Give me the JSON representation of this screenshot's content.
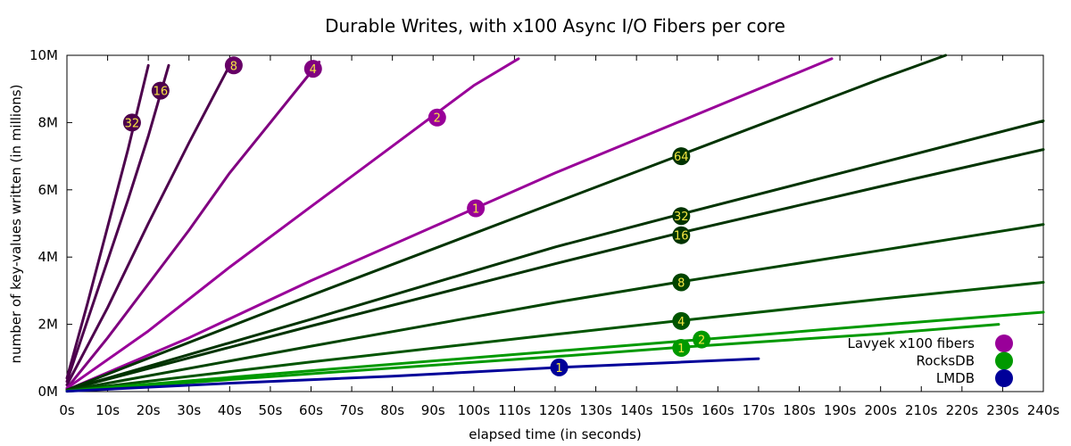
{
  "chart_data": {
    "type": "line",
    "title": "Durable Writes, with x100 Async I/O Fibers per core",
    "xlabel": "elapsed time (in seconds)",
    "ylabel": "number of key-values written (in millions)",
    "xlim": [
      0,
      240
    ],
    "ylim": [
      0,
      10
    ],
    "x_ticks": [
      0,
      10,
      20,
      30,
      40,
      50,
      60,
      70,
      80,
      90,
      100,
      110,
      120,
      130,
      140,
      150,
      160,
      170,
      180,
      190,
      200,
      210,
      220,
      230,
      240
    ],
    "x_tick_labels": [
      "0s",
      "10s",
      "20s",
      "30s",
      "40s",
      "50s",
      "60s",
      "70s",
      "80s",
      "90s",
      "100s",
      "110s",
      "120s",
      "130s",
      "140s",
      "150s",
      "160s",
      "170s",
      "180s",
      "190s",
      "200s",
      "210s",
      "220s",
      "230s",
      "240s"
    ],
    "y_ticks": [
      0,
      2,
      4,
      6,
      8,
      10
    ],
    "y_tick_labels": [
      "0M",
      "2M",
      "4M",
      "6M",
      "8M",
      "10M"
    ],
    "grid": false,
    "legend_position": "bottom-right",
    "legend": [
      {
        "name": "Lavyek x100 fibers",
        "color": "#990099"
      },
      {
        "name": "RocksDB",
        "color": "#009900"
      },
      {
        "name": "LMDB",
        "color": "#000099"
      }
    ],
    "series": [
      {
        "group": "Lavyek x100 fibers",
        "label": "32",
        "color": "#4d004d",
        "marker_color": "#4d004d",
        "points": [
          [
            0,
            0.4
          ],
          [
            5,
            2.6
          ],
          [
            10,
            4.9
          ],
          [
            15,
            7.2
          ],
          [
            20,
            9.7
          ]
        ],
        "marker": [
          16,
          8.0
        ]
      },
      {
        "group": "Lavyek x100 fibers",
        "label": "16",
        "color": "#4d004d",
        "marker_color": "#4d004d",
        "points": [
          [
            0,
            0.3
          ],
          [
            5,
            2.1
          ],
          [
            10,
            3.9
          ],
          [
            15,
            5.7
          ],
          [
            20,
            7.6
          ],
          [
            25,
            9.7
          ]
        ],
        "marker": [
          23,
          8.95
        ]
      },
      {
        "group": "Lavyek x100 fibers",
        "label": "8",
        "color": "#4d004d",
        "marker_color": "#660066",
        "points": [
          [
            0,
            0.2
          ],
          [
            10,
            2.5
          ],
          [
            20,
            5.0
          ],
          [
            30,
            7.4
          ],
          [
            40,
            9.7
          ]
        ],
        "marker": [
          41,
          9.7
        ]
      },
      {
        "group": "Lavyek x100 fibers",
        "label": "4",
        "color": "#800080",
        "marker_color": "#800080",
        "points": [
          [
            0,
            0.1
          ],
          [
            10,
            1.6
          ],
          [
            20,
            3.2
          ],
          [
            30,
            4.8
          ],
          [
            40,
            6.5
          ],
          [
            50,
            8.0
          ],
          [
            62,
            9.8
          ]
        ],
        "marker": [
          60.5,
          9.6
        ]
      },
      {
        "group": "Lavyek x100 fibers",
        "label": "2",
        "color": "#990099",
        "marker_color": "#990099",
        "points": [
          [
            0,
            0.1
          ],
          [
            20,
            1.8
          ],
          [
            40,
            3.7
          ],
          [
            60,
            5.5
          ],
          [
            80,
            7.3
          ],
          [
            100,
            9.1
          ],
          [
            111,
            9.9
          ]
        ],
        "marker": [
          91,
          8.15
        ]
      },
      {
        "group": "Lavyek x100 fibers",
        "label": "1",
        "color": "#990099",
        "marker_color": "#990099",
        "points": [
          [
            0,
            0.05
          ],
          [
            30,
            1.6
          ],
          [
            60,
            3.3
          ],
          [
            90,
            4.9
          ],
          [
            120,
            6.5
          ],
          [
            150,
            8.0
          ],
          [
            188,
            9.9
          ]
        ],
        "marker": [
          100.5,
          5.45
        ]
      },
      {
        "group": "RocksDB",
        "label": "64",
        "color": "#003300",
        "marker_color": "#003300",
        "points": [
          [
            0,
            0.05
          ],
          [
            50,
            2.4
          ],
          [
            100,
            4.7
          ],
          [
            150,
            7.0
          ],
          [
            200,
            9.3
          ],
          [
            216,
            10.0
          ]
        ],
        "marker": [
          151,
          7.0
        ]
      },
      {
        "group": "RocksDB",
        "label": "32",
        "color": "#003300",
        "marker_color": "#003300",
        "points": [
          [
            0,
            0.05
          ],
          [
            60,
            2.15
          ],
          [
            120,
            4.3
          ],
          [
            150,
            5.25
          ],
          [
            200,
            6.8
          ],
          [
            240,
            8.05
          ]
        ],
        "marker": [
          151,
          5.22
        ]
      },
      {
        "group": "RocksDB",
        "label": "16",
        "color": "#003300",
        "marker_color": "#003300",
        "points": [
          [
            0,
            0.05
          ],
          [
            60,
            1.95
          ],
          [
            120,
            3.8
          ],
          [
            150,
            4.7
          ],
          [
            200,
            6.1
          ],
          [
            240,
            7.2
          ]
        ],
        "marker": [
          151,
          4.65
        ]
      },
      {
        "group": "RocksDB",
        "label": "8",
        "color": "#004400",
        "marker_color": "#004400",
        "points": [
          [
            0,
            0.03
          ],
          [
            60,
            1.35
          ],
          [
            120,
            2.65
          ],
          [
            150,
            3.25
          ],
          [
            200,
            4.2
          ],
          [
            240,
            4.97
          ]
        ],
        "marker": [
          151,
          3.25
        ]
      },
      {
        "group": "RocksDB",
        "label": "4",
        "color": "#005500",
        "marker_color": "#005500",
        "points": [
          [
            0,
            0.02
          ],
          [
            60,
            0.88
          ],
          [
            120,
            1.7
          ],
          [
            150,
            2.1
          ],
          [
            200,
            2.75
          ],
          [
            240,
            3.25
          ]
        ],
        "marker": [
          151,
          2.1
        ]
      },
      {
        "group": "RocksDB",
        "label": "2",
        "color": "#009900",
        "marker_color": "#009900",
        "points": [
          [
            0,
            0.02
          ],
          [
            60,
            0.62
          ],
          [
            120,
            1.2
          ],
          [
            156,
            1.55
          ],
          [
            200,
            1.98
          ],
          [
            240,
            2.36
          ]
        ],
        "marker": [
          156,
          1.55
        ]
      },
      {
        "group": "RocksDB",
        "label": "1",
        "color": "#009900",
        "marker_color": "#009900",
        "points": [
          [
            0,
            0.01
          ],
          [
            60,
            0.53
          ],
          [
            120,
            1.04
          ],
          [
            151,
            1.32
          ],
          [
            200,
            1.72
          ],
          [
            229,
            2.0
          ]
        ],
        "marker": [
          151,
          1.3
        ]
      },
      {
        "group": "LMDB",
        "label": "1",
        "color": "#000099",
        "marker_color": "#000099",
        "points": [
          [
            0,
            0.01
          ],
          [
            40,
            0.25
          ],
          [
            80,
            0.46
          ],
          [
            121,
            0.72
          ],
          [
            150,
            0.87
          ],
          [
            170,
            0.98
          ]
        ],
        "marker": [
          121,
          0.72
        ]
      }
    ]
  }
}
